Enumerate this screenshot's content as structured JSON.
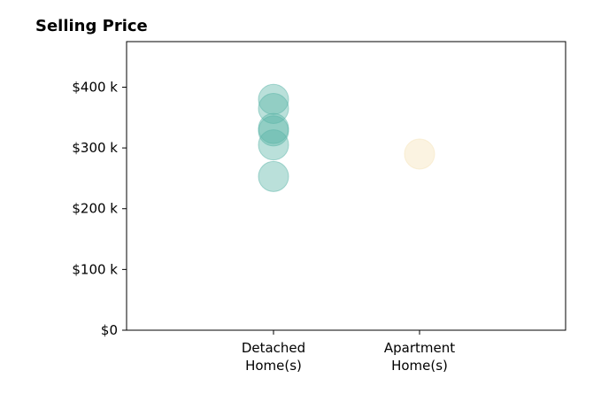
{
  "chart_data": {
    "type": "scatter",
    "title": "Selling Price",
    "xlabel": "",
    "ylabel": "",
    "categories": [
      "Detached\nHome(s)",
      "Apartment\nHome(s)"
    ],
    "ylim": [
      0,
      475000
    ],
    "y_ticks": [
      0,
      100000,
      200000,
      300000,
      400000
    ],
    "y_tick_labels": [
      "$0",
      "$100 k",
      "$200 k",
      "$300 k",
      "$400 k"
    ],
    "series": [
      {
        "category": "Detached\nHome(s)",
        "color": "#5ab4a8",
        "values": [
          380000,
          365000,
          332000,
          328000,
          305000,
          253000
        ]
      },
      {
        "category": "Apartment\nHome(s)",
        "color": "#f5e3b8",
        "values": [
          290000
        ]
      }
    ],
    "grid": false,
    "legend": "none"
  }
}
